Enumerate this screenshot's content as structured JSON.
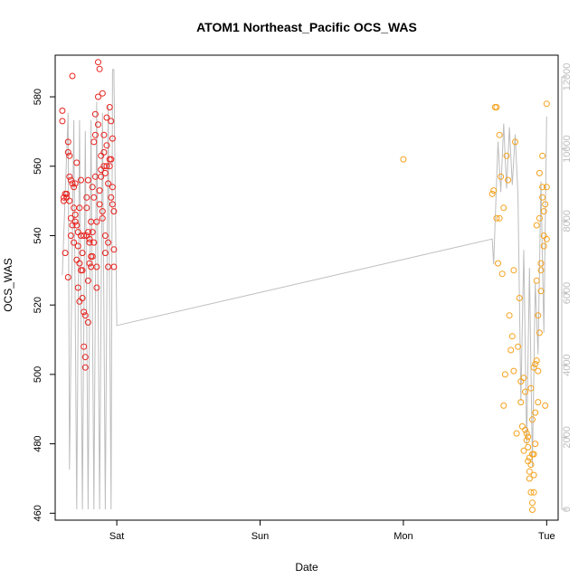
{
  "chart_data": {
    "type": "scatter",
    "title": "ATOM1 Northeast_Pacific OCS_WAS",
    "xlabel": "Date",
    "ylabel": "OCS_WAS",
    "x_ticks": [
      {
        "label": "Sat",
        "day": 1
      },
      {
        "label": "Sun",
        "day": 2
      },
      {
        "label": "Mon",
        "day": 3
      },
      {
        "label": "Tue",
        "day": 4
      }
    ],
    "xlim": [
      0.57,
      4.08
    ],
    "ylim": [
      458,
      592
    ],
    "y_ticks": [
      460,
      480,
      500,
      520,
      540,
      560,
      580
    ],
    "y2lim": [
      -300,
      12600
    ],
    "y2_ticks": [
      0,
      2000,
      4000,
      6000,
      8000,
      10000,
      12000
    ],
    "colors": {
      "group1": "#e8211d",
      "group2": "#f5a11c",
      "line": "#bdbdbd"
    },
    "series": [
      {
        "name": "group1",
        "color": "#e8211d",
        "x": [
          0.62,
          0.62,
          0.63,
          0.63,
          0.64,
          0.64,
          0.65,
          0.65,
          0.66,
          0.66,
          0.66,
          0.67,
          0.67,
          0.67,
          0.68,
          0.68,
          0.68,
          0.69,
          0.69,
          0.69,
          0.7,
          0.7,
          0.7,
          0.71,
          0.71,
          0.71,
          0.72,
          0.72,
          0.72,
          0.73,
          0.73,
          0.73,
          0.74,
          0.74,
          0.74,
          0.75,
          0.75,
          0.75,
          0.76,
          0.76,
          0.76,
          0.77,
          0.77,
          0.77,
          0.78,
          0.78,
          0.78,
          0.79,
          0.79,
          0.79,
          0.8,
          0.8,
          0.8,
          0.8,
          0.81,
          0.81,
          0.81,
          0.82,
          0.82,
          0.82,
          0.83,
          0.83,
          0.83,
          0.84,
          0.84,
          0.84,
          0.85,
          0.85,
          0.85,
          0.86,
          0.86,
          0.86,
          0.87,
          0.87,
          0.87,
          0.88,
          0.88,
          0.88,
          0.89,
          0.89,
          0.89,
          0.9,
          0.9,
          0.9,
          0.91,
          0.91,
          0.91,
          0.92,
          0.92,
          0.92,
          0.93,
          0.93,
          0.93,
          0.94,
          0.94,
          0.94,
          0.95,
          0.95,
          0.95,
          0.96,
          0.96,
          0.96,
          0.97,
          0.97,
          0.97,
          0.98,
          0.98,
          0.98
        ],
        "y": [
          576,
          573,
          551,
          550,
          535,
          552,
          552,
          551,
          567,
          564,
          528,
          563,
          557,
          550,
          540,
          556,
          545,
          555,
          586,
          543,
          548,
          538,
          554,
          555,
          546,
          544,
          561,
          543,
          533,
          541,
          537,
          525,
          532,
          548,
          521,
          556,
          530,
          540,
          530,
          535,
          522,
          508,
          518,
          540,
          505,
          502,
          517,
          548,
          540,
          551,
          527,
          515,
          556,
          541,
          539,
          532,
          538,
          531,
          544,
          534,
          554,
          534,
          541,
          551,
          567,
          538,
          557,
          569,
          575,
          525,
          531,
          544,
          590,
          580,
          572,
          588,
          549,
          553,
          563,
          559,
          557,
          545,
          547,
          581,
          560,
          569,
          564,
          558,
          540,
          535,
          566,
          574,
          560,
          555,
          538,
          531,
          562,
          577,
          560,
          562,
          551,
          573,
          568,
          554,
          549,
          547,
          531,
          536
        ]
      },
      {
        "name": "group2",
        "color": "#f5a11c",
        "x": [
          3.0,
          3.62,
          3.63,
          3.64,
          3.65,
          3.65,
          3.66,
          3.67,
          3.67,
          3.68,
          3.69,
          3.7,
          3.7,
          3.71,
          3.72,
          3.73,
          3.74,
          3.75,
          3.76,
          3.77,
          3.77,
          3.78,
          3.79,
          3.8,
          3.81,
          3.82,
          3.82,
          3.83,
          3.84,
          3.84,
          3.85,
          3.85,
          3.86,
          3.86,
          3.87,
          3.87,
          3.87,
          3.88,
          3.88,
          3.88,
          3.89,
          3.89,
          3.89,
          3.9,
          3.9,
          3.9,
          3.9,
          3.91,
          3.91,
          3.91,
          3.91,
          3.92,
          3.92,
          3.92,
          3.93,
          3.93,
          3.93,
          3.94,
          3.94,
          3.94,
          3.95,
          3.95,
          3.95,
          3.96,
          3.96,
          3.96,
          3.97,
          3.97,
          3.97,
          3.98,
          3.98,
          3.98,
          3.99,
          3.99,
          4.0,
          4.0,
          4.0
        ],
        "y": [
          562,
          552,
          553,
          577,
          577,
          545,
          532,
          545,
          569,
          557,
          529,
          548,
          491,
          500,
          563,
          556,
          517,
          507,
          511,
          530,
          501,
          567,
          483,
          508,
          522,
          498,
          492,
          485,
          478,
          499,
          484,
          495,
          481,
          483,
          475,
          479,
          482,
          476,
          470,
          472,
          466,
          474,
          496,
          487,
          477,
          463,
          461,
          466,
          477,
          471,
          502,
          503,
          480,
          489,
          504,
          543,
          527,
          517,
          501,
          492,
          512,
          545,
          558,
          532,
          530,
          524,
          563,
          551,
          554,
          537,
          540,
          547,
          549,
          491,
          578,
          554,
          539
        ]
      }
    ],
    "line_series": {
      "name": "secondary",
      "color": "#bdbdbd",
      "x": [
        0.62,
        0.66,
        0.67,
        0.7,
        0.72,
        0.74,
        0.76,
        0.78,
        0.8,
        0.82,
        0.84,
        0.86,
        0.88,
        0.9,
        0.92,
        0.94,
        0.96,
        0.97,
        0.98,
        1.0,
        3.62,
        3.63,
        3.66,
        3.68,
        3.7,
        3.72,
        3.74,
        3.76,
        3.78,
        3.8,
        3.82,
        3.84,
        3.86,
        3.88,
        3.9,
        3.92,
        3.94,
        3.96,
        3.98,
        4.0
      ],
      "y": [
        6500,
        11000,
        1100,
        10800,
        0,
        10800,
        0,
        10500,
        0,
        10800,
        0,
        11300,
        0,
        11000,
        0,
        11200,
        0,
        12200,
        12200,
        5100,
        7500,
        6800,
        10200,
        8800,
        10700,
        8900,
        10600,
        9000,
        10400,
        8700,
        3000,
        7200,
        1800,
        6700,
        1200,
        6300,
        4300,
        9100,
        4900,
        10900
      ]
    }
  }
}
